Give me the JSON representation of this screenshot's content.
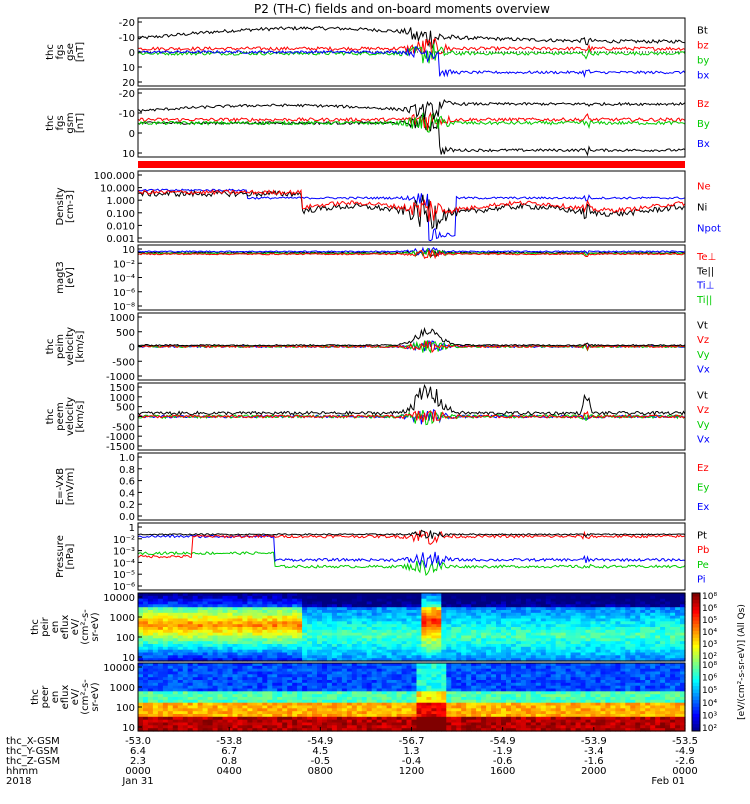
{
  "title": "P2 (TH-C) fields and on-board moments overview",
  "colors": {
    "black": "#000000",
    "red": "#ff0000",
    "green": "#00cc00",
    "blue": "#0000ff"
  },
  "chart_data": [
    {
      "type": "line",
      "panel": "fgs-gse",
      "ylabel": [
        "thc",
        "fgs",
        "gse",
        "[nT]"
      ],
      "ylim": [
        -20,
        20
      ],
      "yticks": [
        -20,
        -10,
        0,
        10,
        20
      ],
      "legend": [
        {
          "label": "Bt",
          "color": "#000000"
        },
        {
          "label": "bz",
          "color": "#ff0000"
        },
        {
          "label": "by",
          "color": "#00cc00"
        },
        {
          "label": "bx",
          "color": "#0000ff"
        }
      ]
    },
    {
      "type": "line",
      "panel": "fgs-gsm",
      "ylabel": [
        "thc",
        "fgs",
        "gsm",
        "[nT]"
      ],
      "ylim": [
        -25,
        20
      ],
      "yticks": [
        -20,
        -10,
        0,
        10
      ],
      "legend": [
        {
          "label": "Bz",
          "color": "#ff0000"
        },
        {
          "label": "By",
          "color": "#00cc00"
        },
        {
          "label": "Bx",
          "color": "#0000ff"
        }
      ]
    },
    {
      "type": "line",
      "panel": "density",
      "ylabel": [
        "Density",
        "[cm-3]"
      ],
      "scale": "log",
      "ylim": [
        0.0005,
        300
      ],
      "yticks": [
        "100.000",
        "10.000",
        "1.000",
        "0.100",
        "0.010",
        "0.001"
      ],
      "legend": [
        {
          "label": "Ne",
          "color": "#ff0000"
        },
        {
          "label": "Ni",
          "color": "#000000"
        },
        {
          "label": "Npot",
          "color": "#0000ff"
        }
      ]
    },
    {
      "type": "line",
      "panel": "temperature",
      "ylabel": [
        "magt3",
        "[eV]"
      ],
      "scale": "log",
      "yticks": [
        "10",
        "10⁻²",
        "10⁻⁴",
        "10⁻⁶",
        "10⁻⁸"
      ],
      "legend": [
        {
          "label": "Te⊥",
          "color": "#ff0000"
        },
        {
          "label": "Te||",
          "color": "#000000"
        },
        {
          "label": "Ti⊥",
          "color": "#0000ff"
        },
        {
          "label": "Ti||",
          "color": "#00cc00"
        }
      ]
    },
    {
      "type": "line",
      "panel": "peim-velocity",
      "ylabel": [
        "thc",
        "peim",
        "velocity",
        "[km/s]"
      ],
      "ylim": [
        -1000,
        1000
      ],
      "yticks": [
        1000,
        500,
        0,
        -500,
        -1000
      ],
      "legend": [
        {
          "label": "Vt",
          "color": "#000000"
        },
        {
          "label": "Vz",
          "color": "#ff0000"
        },
        {
          "label": "Vy",
          "color": "#00cc00"
        },
        {
          "label": "Vx",
          "color": "#0000ff"
        }
      ]
    },
    {
      "type": "line",
      "panel": "peem-velocity",
      "ylabel": [
        "thc",
        "peem",
        "velocity",
        "[km/s]"
      ],
      "ylim": [
        -1500,
        1500
      ],
      "yticks": [
        1500,
        1000,
        500,
        0,
        -500,
        -1000,
        -1500
      ],
      "legend": [
        {
          "label": "Vt",
          "color": "#000000"
        },
        {
          "label": "Vz",
          "color": "#ff0000"
        },
        {
          "label": "Vy",
          "color": "#00cc00"
        },
        {
          "label": "Vx",
          "color": "#0000ff"
        }
      ]
    },
    {
      "type": "line",
      "panel": "e-field",
      "ylabel": [
        "E=-VxB",
        "[mV/m]"
      ],
      "ylim": [
        0,
        1
      ],
      "yticks": [
        "1.0",
        "0.8",
        "0.6",
        "0.4",
        "0.2",
        "0.0"
      ],
      "legend": [
        {
          "label": "Ez",
          "color": "#ff0000"
        },
        {
          "label": "Ey",
          "color": "#00cc00"
        },
        {
          "label": "Ex",
          "color": "#0000ff"
        }
      ]
    },
    {
      "type": "line",
      "panel": "pressure",
      "ylabel": [
        "Pressure",
        "[nPa]"
      ],
      "scale": "log",
      "yticks": [
        "1",
        "10⁻²",
        "10⁻³",
        "10⁻⁴",
        "10⁻⁵",
        "10⁻⁶"
      ],
      "legend": [
        {
          "label": "Pt",
          "color": "#000000"
        },
        {
          "label": "Pb",
          "color": "#ff0000"
        },
        {
          "label": "Pe",
          "color": "#00cc00"
        },
        {
          "label": "Pi",
          "color": "#0000ff"
        }
      ]
    },
    {
      "type": "heatmap",
      "panel": "peir-spectrogram",
      "ylabel": [
        "thc",
        "peir",
        "en",
        "eflux",
        "eV/",
        "(cm²-s-",
        "sr-eV)"
      ],
      "scale": "log",
      "ylim": [
        5,
        30000
      ],
      "yticks": [
        "10000",
        "1000",
        "100",
        "10"
      ]
    },
    {
      "type": "heatmap",
      "panel": "peer-spectrogram",
      "ylabel": [
        "thc",
        "peer",
        "en",
        "eflux",
        "eV/",
        "(cm²-s-",
        "sr-eV)"
      ],
      "scale": "log",
      "ylim": [
        5,
        30000
      ],
      "yticks": [
        "10000",
        "1000",
        "100",
        "10"
      ]
    },
    {
      "type": "colorbar",
      "label": "[eV/(cm²-s-sr-eV)] (All Qs)",
      "ticks": [
        "10⁸",
        "10⁶",
        "10⁵",
        "10⁴",
        "10³",
        "10²"
      ],
      "ticks_lower": [
        "10⁸",
        "10⁶",
        "10⁵",
        "10⁴",
        "10³",
        "10²"
      ]
    }
  ],
  "xaxis": {
    "row_labels": [
      "thc_X-GSM",
      "thc_Y-GSM",
      "thc_Z-GSM",
      "hhmm",
      "2018"
    ],
    "ticks": [
      {
        "x": "-53.0",
        "y": "6.4",
        "z": "2.3",
        "hhmm": "0000",
        "date": "Jan 31"
      },
      {
        "x": "-53.8",
        "y": "6.7",
        "z": "0.8",
        "hhmm": "0400",
        "date": ""
      },
      {
        "x": "-54.9",
        "y": "4.5",
        "z": "-0.5",
        "hhmm": "0800",
        "date": ""
      },
      {
        "x": "-56.7",
        "y": "1.3",
        "z": "-0.4",
        "hhmm": "1200",
        "date": ""
      },
      {
        "x": "-54.9",
        "y": "-1.9",
        "z": "-0.6",
        "hhmm": "1600",
        "date": ""
      },
      {
        "x": "-53.9",
        "y": "-3.4",
        "z": "-1.6",
        "hhmm": "2000",
        "date": ""
      },
      {
        "x": "-53.5",
        "y": "-4.9",
        "z": "-2.6",
        "hhmm": "0000",
        "date": "Feb 01"
      }
    ]
  }
}
